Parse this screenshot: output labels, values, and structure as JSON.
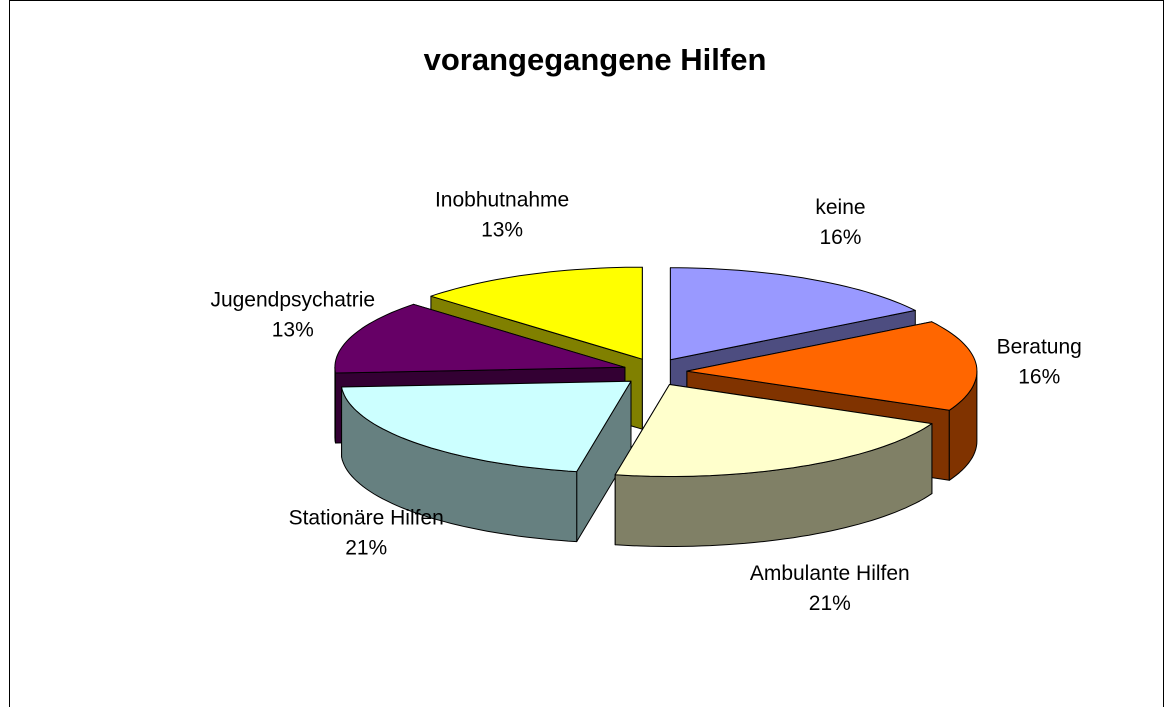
{
  "chart_data": {
    "type": "pie3d",
    "title": "vorangegangene Hilfen",
    "categories": [
      "keine",
      "Beratung",
      "Ambulante Hilfen",
      "Stationäre Hilfen",
      "Jugendpsychatrie",
      "Inobhutnahme"
    ],
    "values": [
      16,
      16,
      21,
      21,
      13,
      13
    ],
    "value_labels": [
      "16%",
      "16%",
      "21%",
      "21%",
      "13%",
      "13%"
    ],
    "colors": [
      "#9999ff",
      "#ff6600",
      "#ffffcc",
      "#ccffff",
      "#660066",
      "#ffff00"
    ]
  }
}
